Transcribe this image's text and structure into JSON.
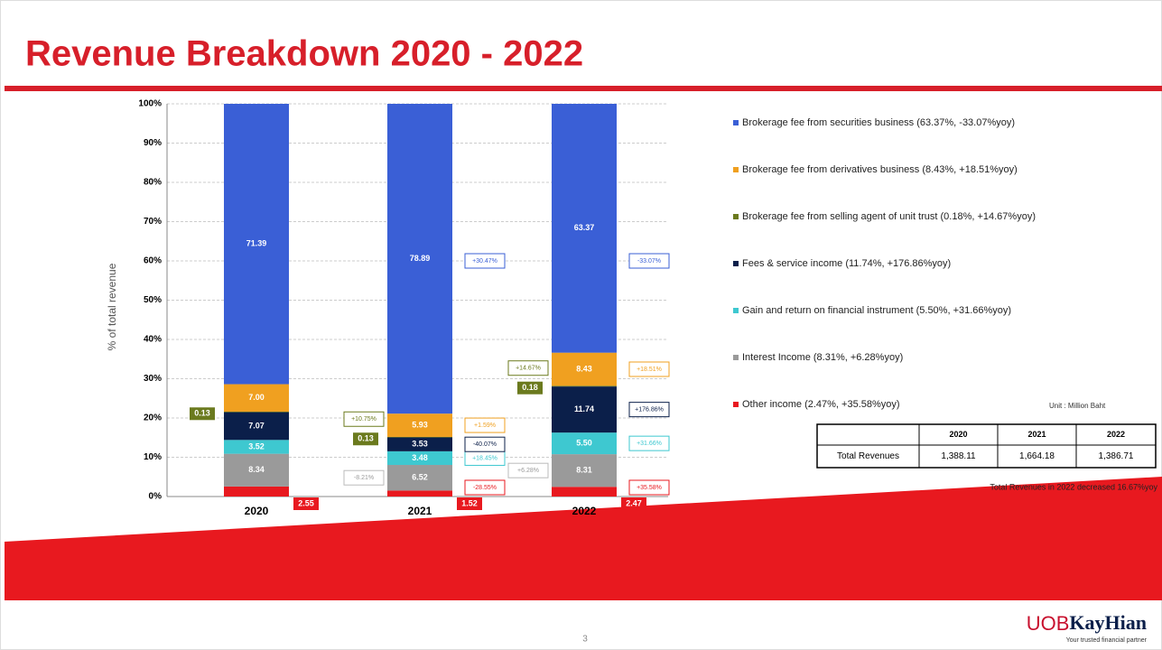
{
  "title": "Revenue Breakdown 2020 - 2022",
  "chart_data": {
    "type": "stacked_bar_percent",
    "y_label": "% of total revenue",
    "categories": [
      "2020",
      "2021",
      "2022"
    ],
    "ylim": [
      0,
      100
    ],
    "yticks": [
      {
        "value": 0,
        "label": "0%"
      },
      {
        "value": 10,
        "label": "10%"
      },
      {
        "value": 20,
        "label": "20%"
      },
      {
        "value": 30,
        "label": "30%"
      },
      {
        "value": 40,
        "label": "40%"
      },
      {
        "value": 50,
        "label": "50%"
      },
      {
        "value": 60,
        "label": "60%"
      },
      {
        "value": 70,
        "label": "70%"
      },
      {
        "value": 80,
        "label": "80%"
      },
      {
        "value": 90,
        "label": "90%"
      },
      {
        "value": 100,
        "label": "100%"
      }
    ],
    "grid": true,
    "series": [
      {
        "name": "Other income (2.47%, +35.58%yoy)",
        "color": "#e8191f",
        "values": [
          2.55,
          1.52,
          2.47
        ],
        "yoy": [
          null,
          "-28.55%",
          "+35.58%"
        ]
      },
      {
        "name": "Interest Income (8.31%, +6.28%yoy)",
        "color": "#9a9a9a",
        "values": [
          8.34,
          6.52,
          8.31
        ],
        "yoy": [
          null,
          "-8.21%",
          "+6.28%"
        ]
      },
      {
        "name": "Gain and return on financial instrument (5.50%, +31.66%yoy)",
        "color": "#3ec8d0",
        "values": [
          3.52,
          3.48,
          5.5
        ],
        "value_labels": [
          "3.52",
          "3.48",
          "5.50"
        ],
        "yoy": [
          null,
          "+18.45%",
          "+31.66%"
        ]
      },
      {
        "name": "Fees & service income (11.74%, +176.86%yoy)",
        "color": "#0b1f4a",
        "values": [
          7.07,
          3.53,
          11.74
        ],
        "yoy": [
          null,
          "-40.07%",
          "+176.86%"
        ]
      },
      {
        "name": "Brokerage fee from selling agent of unit trust (0.18%, +14.67%yoy)",
        "color": "#6b7a1e",
        "values": [
          0.13,
          0.13,
          0.18
        ],
        "yoy": [
          null,
          "+10.75%",
          "+14.67%"
        ]
      },
      {
        "name": "Brokerage fee from derivatives business (8.43%, +18.51%yoy)",
        "color": "#f0a020",
        "values": [
          7,
          5.93,
          8.43
        ],
        "value_labels": [
          "7.00",
          "5.93",
          "8.43"
        ],
        "yoy": [
          null,
          "+1.59%",
          "+18.51%"
        ]
      },
      {
        "name": "Brokerage fee from securities business (63.37%, -33.07%yoy)",
        "color": "#3a5fd6",
        "values": [
          71.39,
          78.89,
          63.37
        ],
        "yoy": [
          null,
          "+30.47%",
          "-33.07%"
        ]
      }
    ]
  },
  "unit": "Unit : Million Baht",
  "table": {
    "header": [
      "2020",
      "2021",
      "2022"
    ],
    "row_label": "Total Revenues",
    "rows": [
      [
        "1,388.11",
        "1,664.18",
        "1,386.71"
      ]
    ]
  },
  "footnote": "Total Revenues in 2022 decreased 16.67%yoy",
  "page_number": "3",
  "logo": {
    "name_a": "UOB",
    "name_b": "KayHian",
    "tagline": "Your trusted financial partner"
  }
}
